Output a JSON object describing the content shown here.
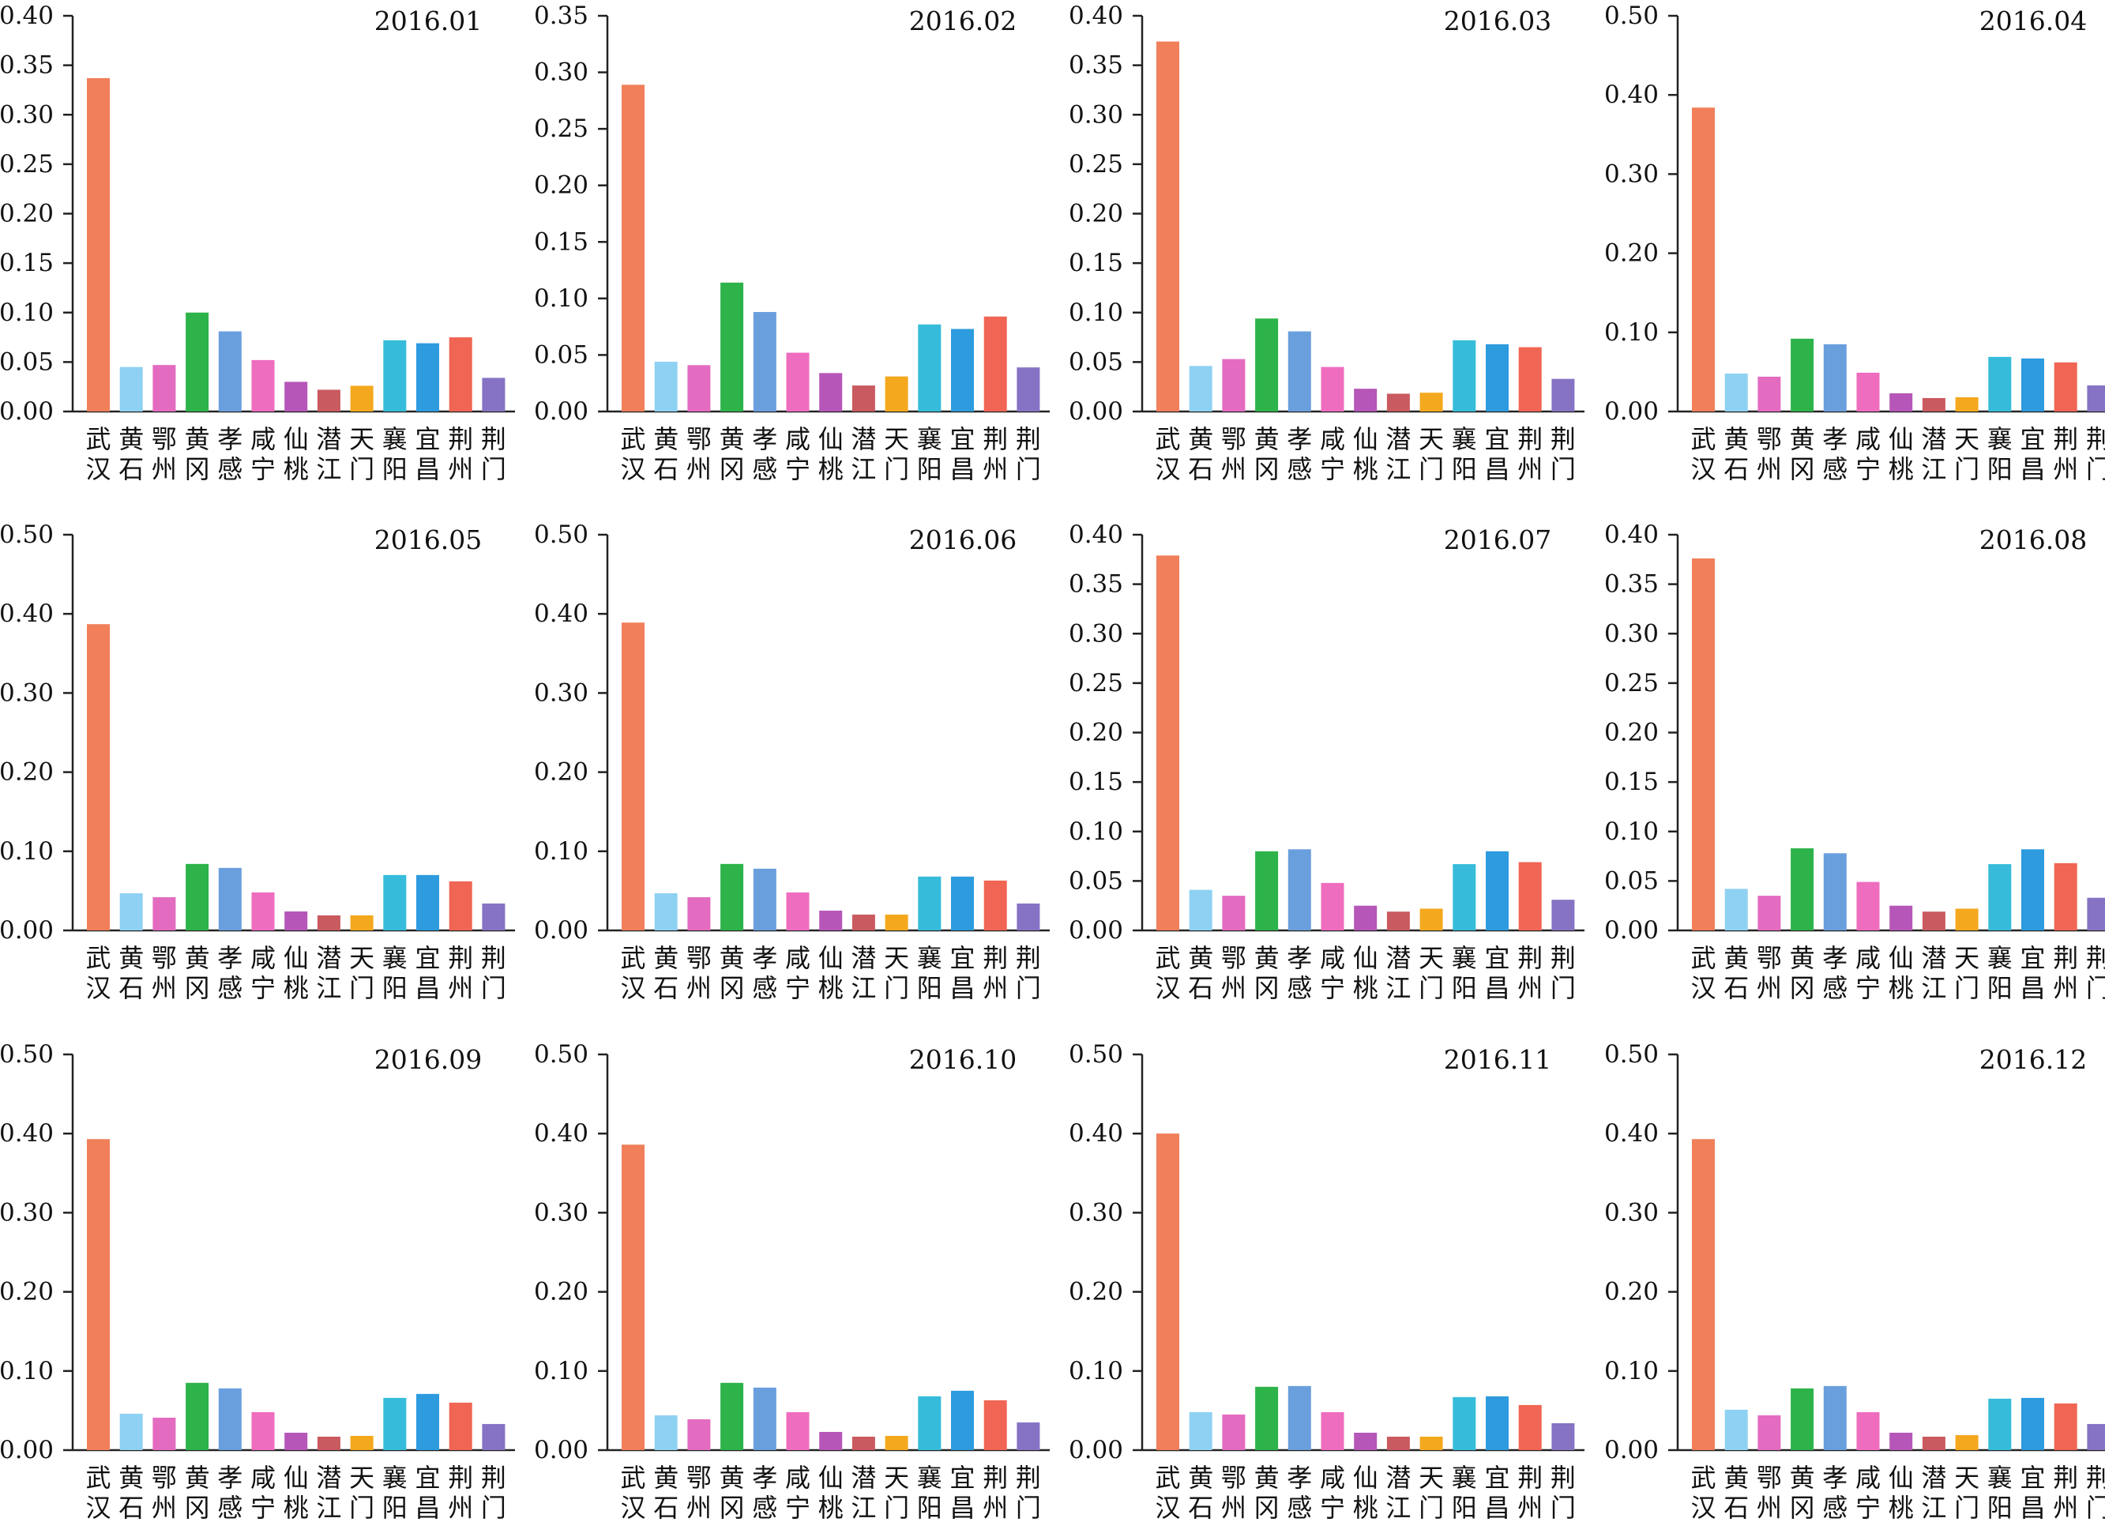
{
  "chart_data": {
    "type": "bar",
    "layout": {
      "rows": 3,
      "cols": 4
    },
    "categories": [
      "武汉",
      "黄石",
      "鄂州",
      "黄冈",
      "孝感",
      "咸宁",
      "仙桃",
      "潜江",
      "天门",
      "襄阳",
      "宜昌",
      "荆州",
      "荆门"
    ],
    "colors": [
      "#F07F5A",
      "#8ED1F2",
      "#E36CC0",
      "#2DB34A",
      "#6A9FDD",
      "#EE6DBE",
      "#B656B8",
      "#C95A60",
      "#F4A81D",
      "#36BCDA",
      "#2D9BDE",
      "#F06553",
      "#8673C4"
    ],
    "panels": [
      {
        "title": "2016.01",
        "ylim": [
          0,
          0.4
        ],
        "yticks": [
          "0.00",
          "0.05",
          "0.10",
          "0.15",
          "0.20",
          "0.25",
          "0.30",
          "0.35",
          "0.40"
        ],
        "values": [
          0.337,
          0.045,
          0.047,
          0.1,
          0.081,
          0.052,
          0.03,
          0.022,
          0.026,
          0.072,
          0.069,
          0.075,
          0.034
        ]
      },
      {
        "title": "2016.02",
        "ylim": [
          0,
          0.35
        ],
        "yticks": [
          "0.00",
          "0.05",
          "0.10",
          "0.15",
          "0.20",
          "0.25",
          "0.30",
          "0.35"
        ],
        "values": [
          0.289,
          0.044,
          0.041,
          0.114,
          0.088,
          0.052,
          0.034,
          0.023,
          0.031,
          0.077,
          0.073,
          0.084,
          0.039
        ]
      },
      {
        "title": "2016.03",
        "ylim": [
          0,
          0.4
        ],
        "yticks": [
          "0.00",
          "0.05",
          "0.10",
          "0.15",
          "0.20",
          "0.25",
          "0.30",
          "0.35",
          "0.40"
        ],
        "values": [
          0.374,
          0.046,
          0.053,
          0.094,
          0.081,
          0.045,
          0.023,
          0.018,
          0.019,
          0.072,
          0.068,
          0.065,
          0.033
        ]
      },
      {
        "title": "2016.04",
        "ylim": [
          0,
          0.5
        ],
        "yticks": [
          "0.00",
          "0.10",
          "0.20",
          "0.30",
          "0.40",
          "0.50"
        ],
        "values": [
          0.384,
          0.048,
          0.044,
          0.092,
          0.085,
          0.049,
          0.023,
          0.017,
          0.018,
          0.069,
          0.067,
          0.062,
          0.033
        ]
      },
      {
        "title": "2016.05",
        "ylim": [
          0,
          0.5
        ],
        "yticks": [
          "0.00",
          "0.10",
          "0.20",
          "0.30",
          "0.40",
          "0.50"
        ],
        "values": [
          0.387,
          0.047,
          0.042,
          0.084,
          0.079,
          0.048,
          0.024,
          0.019,
          0.019,
          0.07,
          0.07,
          0.062,
          0.034
        ]
      },
      {
        "title": "2016.06",
        "ylim": [
          0,
          0.5
        ],
        "yticks": [
          "0.00",
          "0.10",
          "0.20",
          "0.30",
          "0.40",
          "0.50"
        ],
        "values": [
          0.389,
          0.047,
          0.042,
          0.084,
          0.078,
          0.048,
          0.025,
          0.02,
          0.02,
          0.068,
          0.068,
          0.063,
          0.034
        ]
      },
      {
        "title": "2016.07",
        "ylim": [
          0,
          0.4
        ],
        "yticks": [
          "0.00",
          "0.05",
          "0.10",
          "0.15",
          "0.20",
          "0.25",
          "0.30",
          "0.35",
          "0.40"
        ],
        "values": [
          0.379,
          0.041,
          0.035,
          0.08,
          0.082,
          0.048,
          0.025,
          0.019,
          0.022,
          0.067,
          0.08,
          0.069,
          0.031
        ]
      },
      {
        "title": "2016.08",
        "ylim": [
          0,
          0.4
        ],
        "yticks": [
          "0.00",
          "0.05",
          "0.10",
          "0.15",
          "0.20",
          "0.25",
          "0.30",
          "0.35",
          "0.40"
        ],
        "values": [
          0.376,
          0.042,
          0.035,
          0.083,
          0.078,
          0.049,
          0.025,
          0.019,
          0.022,
          0.067,
          0.082,
          0.068,
          0.033
        ]
      },
      {
        "title": "2016.09",
        "ylim": [
          0,
          0.5
        ],
        "yticks": [
          "0.00",
          "0.10",
          "0.20",
          "0.30",
          "0.40",
          "0.50"
        ],
        "values": [
          0.393,
          0.046,
          0.041,
          0.085,
          0.078,
          0.048,
          0.022,
          0.017,
          0.018,
          0.066,
          0.071,
          0.06,
          0.033
        ]
      },
      {
        "title": "2016.10",
        "ylim": [
          0,
          0.5
        ],
        "yticks": [
          "0.00",
          "0.10",
          "0.20",
          "0.30",
          "0.40",
          "0.50"
        ],
        "values": [
          0.386,
          0.044,
          0.039,
          0.085,
          0.079,
          0.048,
          0.023,
          0.017,
          0.018,
          0.068,
          0.075,
          0.063,
          0.035
        ]
      },
      {
        "title": "2016.11",
        "ylim": [
          0,
          0.5
        ],
        "yticks": [
          "0.00",
          "0.10",
          "0.20",
          "0.30",
          "0.40",
          "0.50"
        ],
        "values": [
          0.4,
          0.048,
          0.045,
          0.08,
          0.081,
          0.048,
          0.022,
          0.017,
          0.017,
          0.067,
          0.068,
          0.057,
          0.034
        ]
      },
      {
        "title": "2016.12",
        "ylim": [
          0,
          0.5
        ],
        "yticks": [
          "0.00",
          "0.10",
          "0.20",
          "0.30",
          "0.40",
          "0.50"
        ],
        "values": [
          0.393,
          0.051,
          0.044,
          0.078,
          0.081,
          0.048,
          0.022,
          0.017,
          0.019,
          0.065,
          0.066,
          0.059,
          0.033
        ]
      }
    ]
  }
}
